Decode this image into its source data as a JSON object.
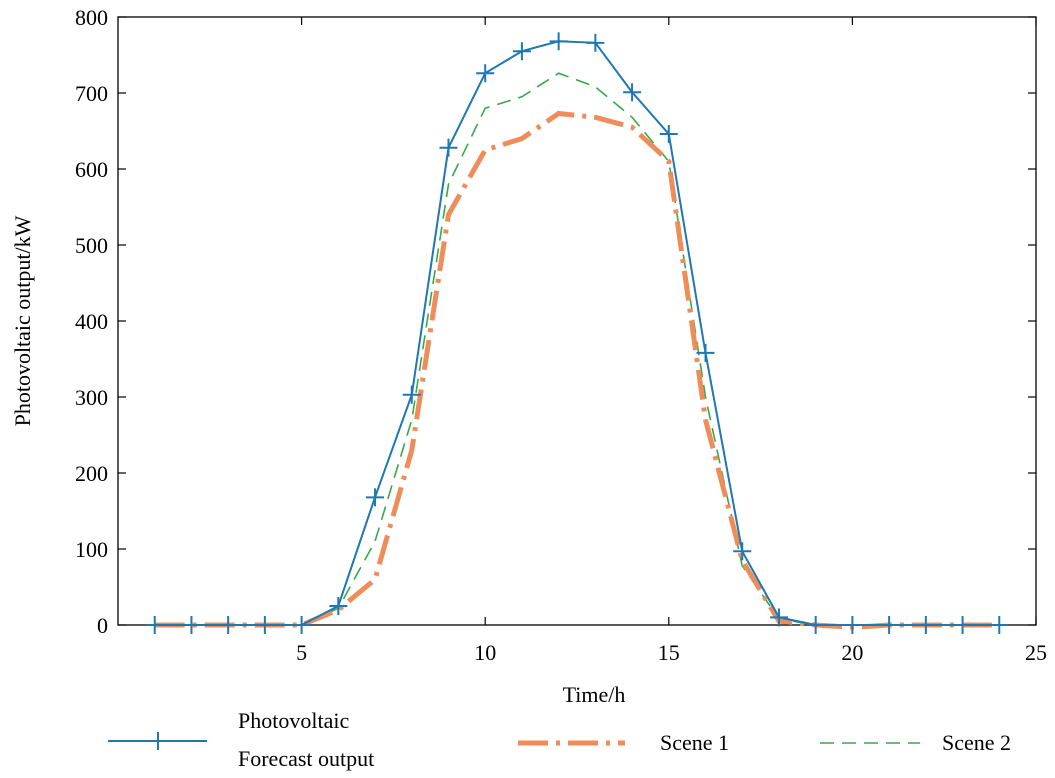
{
  "chart_data": {
    "type": "line",
    "xlabel": "Time/h",
    "ylabel": "Photovoltaic output/kW",
    "xlim": [
      0,
      25
    ],
    "ylim": [
      0,
      800
    ],
    "xticks": [
      5,
      10,
      15,
      20,
      25
    ],
    "yticks": [
      0,
      100,
      200,
      300,
      400,
      500,
      600,
      700,
      800
    ],
    "grid": false,
    "legend_position": "bottom",
    "x": [
      1,
      2,
      3,
      4,
      5,
      6,
      7,
      8,
      9,
      10,
      11,
      12,
      13,
      14,
      15,
      16,
      17,
      18,
      19,
      20,
      21,
      22,
      23,
      24
    ],
    "series": [
      {
        "name_lines": [
          "Photovoltaic",
          "Forecast output"
        ],
        "color": "#1f77b4",
        "style": "solid-plus",
        "values": [
          0,
          0,
          0,
          0,
          0,
          25,
          168,
          303,
          628,
          726,
          755,
          768,
          766,
          701,
          646,
          358,
          97,
          10,
          0,
          0,
          0,
          0,
          0,
          0
        ]
      },
      {
        "name": "Scene 1",
        "color": "#ee8d5a",
        "style": "dashdot",
        "values": [
          0,
          0,
          0,
          0,
          0,
          20,
          60,
          230,
          540,
          625,
          640,
          673,
          668,
          655,
          610,
          270,
          85,
          5,
          0,
          -3,
          0,
          0,
          0,
          0
        ]
      },
      {
        "name": "Scene 2",
        "color": "#3aa84a",
        "style": "dashed",
        "values": [
          0,
          0,
          0,
          0,
          0,
          22,
          110,
          270,
          580,
          680,
          695,
          726,
          708,
          668,
          610,
          300,
          78,
          8,
          0,
          0,
          0,
          0,
          0,
          0
        ]
      }
    ]
  }
}
